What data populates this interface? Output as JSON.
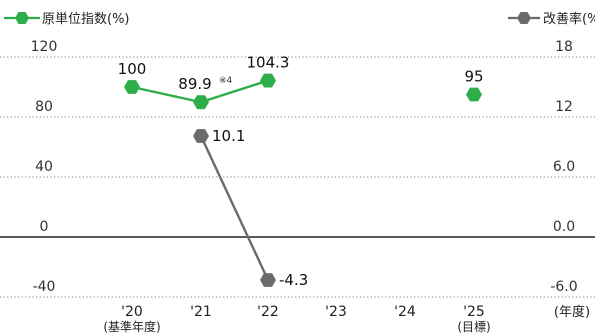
{
  "chart_data": {
    "type": "line",
    "left_axis": {
      "label": "原単位指数(%)",
      "ticks": [
        120,
        80,
        40,
        0,
        -40
      ],
      "range": [
        -40,
        120
      ]
    },
    "right_axis": {
      "label": "改善率(%)",
      "ticks": [
        "18",
        "12",
        "6.0",
        "0.0",
        "-6.0"
      ],
      "range": [
        -6,
        18
      ]
    },
    "categories": [
      "'20",
      "'21",
      "'22",
      "'23",
      "'24",
      "'25"
    ],
    "category_sublabels": [
      "(基準年度)",
      "",
      "",
      "",
      "",
      "(目標)"
    ],
    "x_unit": "(年度)",
    "grid": "dotted horizontal",
    "series": [
      {
        "name": "原単位指数(%)",
        "axis": "left",
        "color": "#2eae49",
        "marker": "hexagon",
        "points": [
          {
            "category": "'20",
            "value": 100,
            "label": "100"
          },
          {
            "category": "'21",
            "value": 89.9,
            "label": "89.9",
            "note": "※4"
          },
          {
            "category": "'22",
            "value": 104.3,
            "label": "104.3"
          }
        ],
        "target": {
          "category": "'25",
          "value": 95,
          "label": "95"
        }
      },
      {
        "name": "改善率(%)",
        "axis": "right",
        "color": "#6b6b6b",
        "marker": "hexagon",
        "points": [
          {
            "category": "'21",
            "value": 10.1,
            "label": "10.1"
          },
          {
            "category": "'22",
            "value": -4.3,
            "label": "-4.3"
          }
        ]
      }
    ]
  }
}
